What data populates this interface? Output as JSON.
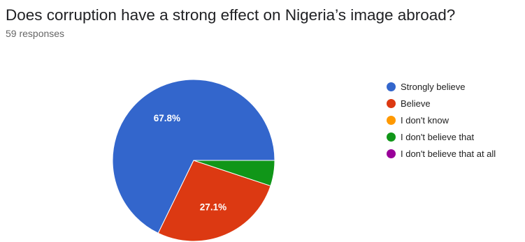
{
  "title": "Does corruption have a strong effect on Nigeria’s image abroad?",
  "subtitle": "59 responses",
  "chart_data": {
    "type": "pie",
    "total_responses": 59,
    "slices": [
      {
        "label": "Strongly believe",
        "value": 67.8,
        "color": "#3366cc",
        "display_label": "67.8%"
      },
      {
        "label": "Believe",
        "value": 27.1,
        "color": "#dc3912",
        "display_label": "27.1%"
      },
      {
        "label": "I don't know",
        "value": 0,
        "color": "#ff9900",
        "display_label": ""
      },
      {
        "label": "I don't believe that",
        "value": 5.1,
        "color": "#109618",
        "display_label": ""
      },
      {
        "label": "I don't believe that at all",
        "value": 0,
        "color": "#990099",
        "display_label": ""
      }
    ],
    "legend_position": "right"
  }
}
